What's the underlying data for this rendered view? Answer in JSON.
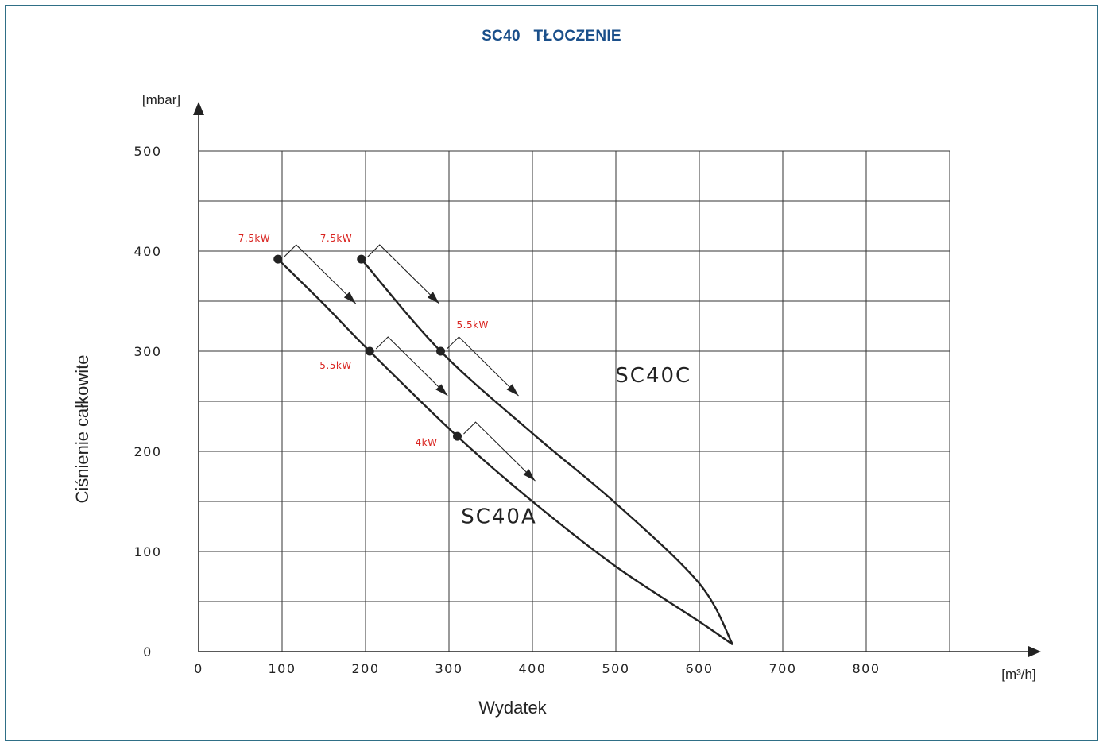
{
  "chart_data": {
    "type": "line",
    "title": "SC40   TŁOCZENIE",
    "xlabel": "Wydatek",
    "ylabel": "Ciśnienie całkowite",
    "x_unit": "[m³/h]",
    "y_unit": "[mbar]",
    "xlim": [
      0,
      900
    ],
    "ylim": [
      0,
      500
    ],
    "x_ticks": [
      0,
      100,
      200,
      300,
      400,
      500,
      600,
      700,
      800
    ],
    "y_ticks": [
      0,
      100,
      200,
      300,
      400,
      500
    ],
    "grid": true,
    "series": [
      {
        "name": "SC40A",
        "x": [
          95,
          150,
          205,
          310,
          400,
          500,
          600,
          640
        ],
        "y": [
          392,
          347,
          300,
          215,
          150,
          85,
          30,
          7
        ]
      },
      {
        "name": "SC40C",
        "x": [
          195,
          290,
          400,
          500,
          600,
          640
        ],
        "y": [
          392,
          300,
          218,
          148,
          68,
          7
        ]
      }
    ],
    "motor_points": [
      {
        "series": "SC40A",
        "x": 95,
        "y": 392,
        "label": "7.5kW"
      },
      {
        "series": "SC40A",
        "x": 205,
        "y": 300,
        "label": "5.5kW"
      },
      {
        "series": "SC40A",
        "x": 310,
        "y": 215,
        "label": "4kW"
      },
      {
        "series": "SC40C",
        "x": 195,
        "y": 392,
        "label": "7.5kW"
      },
      {
        "series": "SC40C",
        "x": 290,
        "y": 300,
        "label": "5.5kW"
      }
    ],
    "annotations": [
      {
        "text": "SC40A",
        "x": 360,
        "y": 128
      },
      {
        "text": "SC40C",
        "x": 545,
        "y": 269
      }
    ],
    "colors": {
      "line": "#222222",
      "grid": "#333333",
      "power_label": "#d9231f",
      "title": "#1a4f8a",
      "frame": "#2f6f86"
    }
  }
}
